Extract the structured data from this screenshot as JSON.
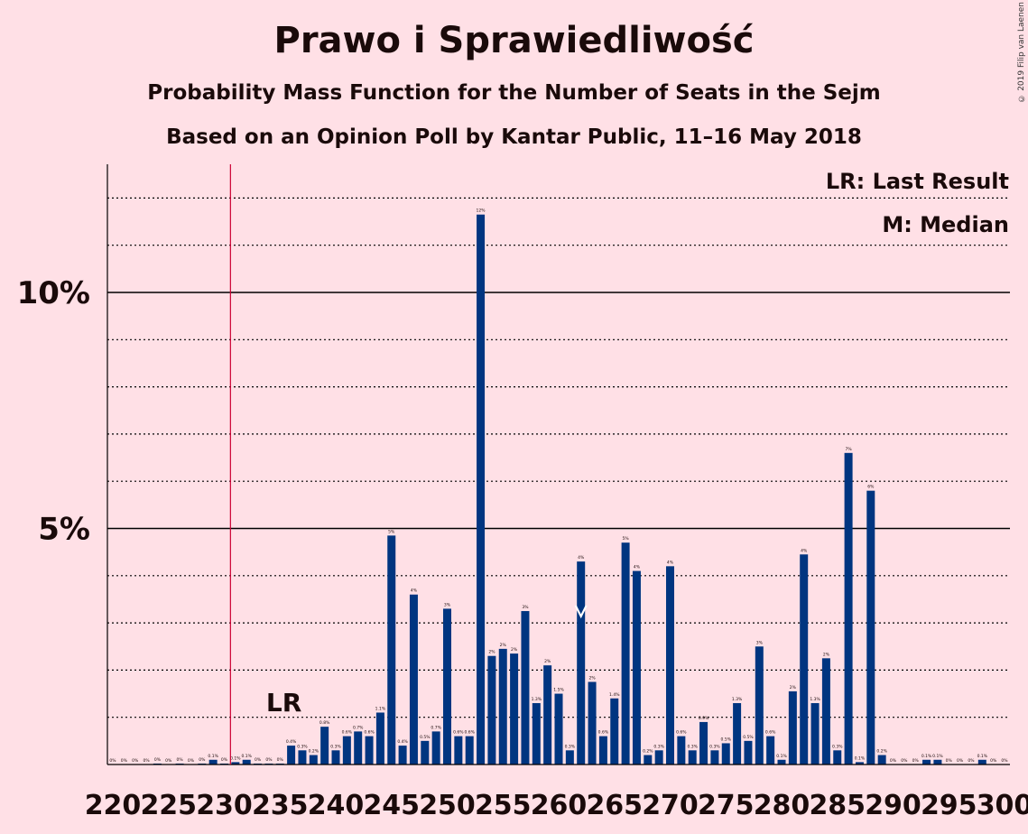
{
  "title": "Prawo i Sprawiedliwość",
  "subtitle1": "Probability Mass Function for the Number of Seats in the Sejm",
  "subtitle2": "Based on an Opinion Poll by Kantar Public, 11–16 May 2018",
  "copyright": "© 2019 Filip van Laenen",
  "legend": {
    "lr": "LR: Last Result",
    "m": "M: Median"
  },
  "lr_marker": "LR",
  "colors": {
    "bar": "#003580",
    "lr_line": "#CC0033",
    "background": "#FFE0E6"
  },
  "chart_data": {
    "type": "bar",
    "title": "Prawo i Sprawiedliwość",
    "xlabel": "",
    "ylabel": "",
    "ylim": [
      0,
      12.7
    ],
    "yticks": [
      {
        "value": 5,
        "label": "5%"
      },
      {
        "value": 10,
        "label": "10%"
      }
    ],
    "grid": "dotted every 1%, solid at 5% and 10%",
    "last_result": 231,
    "median": 262,
    "x_labels": [
      "220",
      "225",
      "230",
      "235",
      "240",
      "245",
      "250",
      "255",
      "260",
      "265",
      "270",
      "275",
      "280",
      "285",
      "290",
      "295",
      "300"
    ],
    "categories": [
      220,
      221,
      222,
      223,
      224,
      225,
      226,
      227,
      228,
      229,
      230,
      231,
      232,
      233,
      234,
      235,
      236,
      237,
      238,
      239,
      240,
      241,
      242,
      243,
      244,
      245,
      246,
      247,
      248,
      249,
      250,
      251,
      252,
      253,
      254,
      255,
      256,
      257,
      258,
      259,
      260,
      261,
      262,
      263,
      264,
      265,
      266,
      267,
      268,
      269,
      270,
      271,
      272,
      273,
      274,
      275,
      276,
      277,
      278,
      279,
      280,
      281,
      282,
      283,
      284,
      285,
      286,
      287,
      288,
      289,
      290,
      291,
      292,
      293,
      294,
      295,
      296,
      297,
      298,
      299,
      300
    ],
    "values": [
      0,
      0,
      0,
      0,
      0.02,
      0,
      0.02,
      0,
      0.02,
      0.1,
      0.02,
      0.05,
      0.1,
      0.02,
      0.02,
      0.02,
      0.4,
      0.3,
      0.2,
      0.8,
      0.3,
      0.6,
      0.7,
      0.6,
      1.1,
      4.85,
      0.4,
      3.6,
      0.5,
      0.7,
      3.3,
      0.6,
      0.6,
      11.65,
      2.3,
      2.45,
      2.35,
      3.25,
      1.3,
      2.1,
      1.5,
      0.3,
      4.3,
      1.75,
      0.6,
      1.4,
      4.7,
      4.1,
      0.2,
      0.3,
      4.2,
      0.6,
      0.3,
      0.9,
      0.3,
      0.45,
      1.3,
      0.5,
      2.5,
      0.6,
      0.1,
      1.55,
      4.45,
      1.3,
      2.25,
      0.3,
      6.6,
      0.05,
      5.8,
      0.2,
      0,
      0,
      0,
      0.1,
      0.1,
      0,
      0,
      0,
      0.1,
      0,
      0
    ],
    "labels": [
      "0%",
      "0%",
      "0%",
      "0%",
      "0%",
      "0%",
      "0%",
      "0%",
      "0%",
      "0.1%",
      "0%",
      "0.1%",
      "0.1%",
      "0%",
      "0%",
      "0%",
      "0.4%",
      "0.3%",
      "0.2%",
      "0.8%",
      "0.3%",
      "0.6%",
      "0.7%",
      "0.6%",
      "1.1%",
      "5%",
      "0.4%",
      "4%",
      "0.5%",
      "0.7%",
      "3%",
      "0.6%",
      "0.6%",
      "12%",
      "2%",
      "2%",
      "2%",
      "3%",
      "1.3%",
      "2%",
      "1.5%",
      "0.3%",
      "4%",
      "2%",
      "0.6%",
      "1.4%",
      "5%",
      "4%",
      "0.2%",
      "0.3%",
      "4%",
      "0.6%",
      "0.3%",
      "0.9%",
      "0.3%",
      "0.5%",
      "1.3%",
      "0.5%",
      "3%",
      "0.6%",
      "0.1%",
      "2%",
      "4%",
      "1.3%",
      "2%",
      "0.3%",
      "7%",
      "0.1%",
      "6%",
      "0.2%",
      "0%",
      "0%",
      "0%",
      "0.1%",
      "0.1%",
      "0%",
      "0%",
      "0%",
      "0.1%",
      "0%",
      "0%"
    ]
  }
}
